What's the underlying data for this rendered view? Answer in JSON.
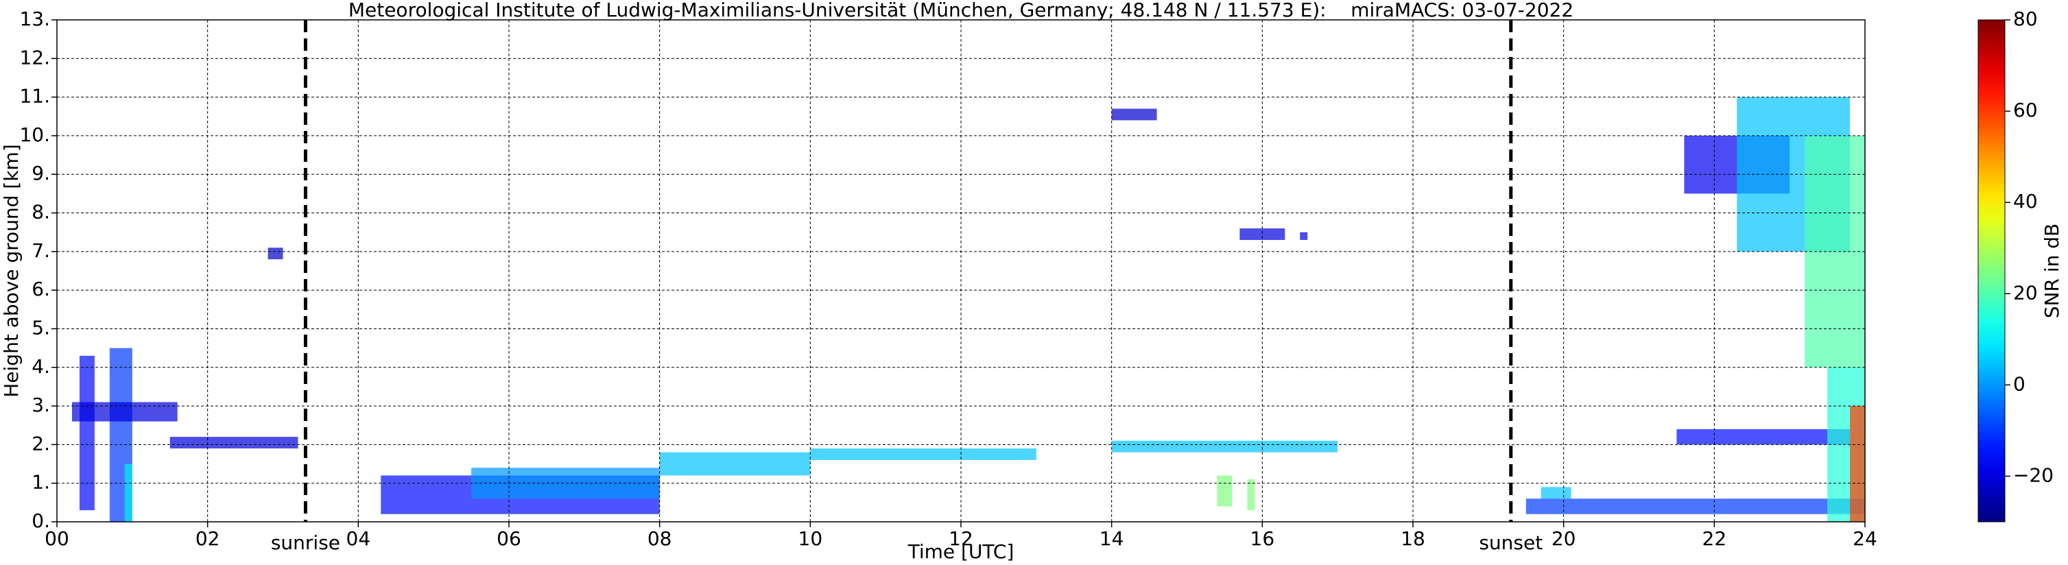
{
  "chart_data": {
    "type": "heatmap",
    "title": "Meteorological Institute of Ludwig-Maximilians-Universität (München, Germany; 48.148 N / 11.573 E):    miraMACS: 03-07-2022",
    "x_label": "Time [UTC]",
    "y_label": "Height above ground [km]",
    "xlim": [
      0,
      24
    ],
    "ylim": [
      0,
      13
    ],
    "xticks": [
      {
        "value": 0,
        "label": "00"
      },
      {
        "value": 2,
        "label": "02"
      },
      {
        "value": 4,
        "label": "04"
      },
      {
        "value": 6,
        "label": "06"
      },
      {
        "value": 8,
        "label": "08"
      },
      {
        "value": 10,
        "label": "10"
      },
      {
        "value": 12,
        "label": "12"
      },
      {
        "value": 14,
        "label": "14"
      },
      {
        "value": 16,
        "label": "16"
      },
      {
        "value": 18,
        "label": "18"
      },
      {
        "value": 20,
        "label": "20"
      },
      {
        "value": 22,
        "label": "22"
      },
      {
        "value": 24,
        "label": "24"
      }
    ],
    "yticks": [
      {
        "value": 0,
        "label": "0."
      },
      {
        "value": 1,
        "label": "1."
      },
      {
        "value": 2,
        "label": "2."
      },
      {
        "value": 3,
        "label": "3."
      },
      {
        "value": 4,
        "label": "4."
      },
      {
        "value": 5,
        "label": "5."
      },
      {
        "value": 6,
        "label": "6."
      },
      {
        "value": 7,
        "label": "7."
      },
      {
        "value": 8,
        "label": "8."
      },
      {
        "value": 9,
        "label": "9."
      },
      {
        "value": 10,
        "label": "10."
      },
      {
        "value": 11,
        "label": "11."
      },
      {
        "value": 12,
        "label": "12."
      },
      {
        "value": 13,
        "label": "13."
      }
    ],
    "grid": true,
    "colorbar": {
      "label": "SNR in dB",
      "colormap": "jet",
      "lim": [
        -30,
        80
      ],
      "ticks": [
        {
          "value": -20,
          "label": "−20"
        },
        0,
        20,
        40,
        60,
        80
      ]
    },
    "annotations": [
      {
        "text": "sunrise",
        "x": 3.3
      },
      {
        "text": "sunset",
        "x": 19.3
      }
    ],
    "cells": [
      {
        "x": [
          0.3,
          0.5
        ],
        "y": [
          0.3,
          4.3
        ],
        "value": -15
      },
      {
        "x": [
          0.7,
          1.0
        ],
        "y": [
          0,
          4.5
        ],
        "value": -10
      },
      {
        "x": [
          0.9,
          1.0
        ],
        "y": [
          0,
          1.5
        ],
        "value": 10
      },
      {
        "x": [
          0.2,
          1.6
        ],
        "y": [
          2.6,
          3.1
        ],
        "value": -20
      },
      {
        "x": [
          1.5,
          3.2
        ],
        "y": [
          1.9,
          2.2
        ],
        "value": -20
      },
      {
        "x": [
          2.8,
          3.0
        ],
        "y": [
          6.8,
          7.1
        ],
        "value": -22
      },
      {
        "x": [
          4.3,
          8.0
        ],
        "y": [
          0.2,
          1.2
        ],
        "value": -15
      },
      {
        "x": [
          5.5,
          8.0
        ],
        "y": [
          0.6,
          1.4
        ],
        "value": 0
      },
      {
        "x": [
          8.0,
          10.0
        ],
        "y": [
          1.2,
          1.8
        ],
        "value": 5
      },
      {
        "x": [
          10.0,
          13.0
        ],
        "y": [
          1.6,
          1.9
        ],
        "value": 5
      },
      {
        "x": [
          14.0,
          14.6
        ],
        "y": [
          10.4,
          10.7
        ],
        "value": -22
      },
      {
        "x": [
          15.4,
          15.6
        ],
        "y": [
          0.4,
          1.2
        ],
        "value": 25
      },
      {
        "x": [
          15.8,
          15.9
        ],
        "y": [
          0.3,
          1.1
        ],
        "value": 25
      },
      {
        "x": [
          15.7,
          16.3
        ],
        "y": [
          7.3,
          7.6
        ],
        "value": -20
      },
      {
        "x": [
          16.5,
          16.6
        ],
        "y": [
          7.3,
          7.5
        ],
        "value": -20
      },
      {
        "x": [
          14.0,
          17.0
        ],
        "y": [
          1.8,
          2.1
        ],
        "value": 5
      },
      {
        "x": [
          19.7,
          20.1
        ],
        "y": [
          0.6,
          0.9
        ],
        "value": 5
      },
      {
        "x": [
          19.5,
          24.0
        ],
        "y": [
          0.2,
          0.6
        ],
        "value": -10
      },
      {
        "x": [
          21.5,
          23.8
        ],
        "y": [
          2.0,
          2.4
        ],
        "value": -15
      },
      {
        "x": [
          21.6,
          23.0
        ],
        "y": [
          8.5,
          10.0
        ],
        "value": -18
      },
      {
        "x": [
          22.3,
          23.8
        ],
        "y": [
          7.0,
          11.0
        ],
        "value": 5
      },
      {
        "x": [
          23.2,
          24.0
        ],
        "y": [
          4.0,
          10.0
        ],
        "value": 20
      },
      {
        "x": [
          23.5,
          24.0
        ],
        "y": [
          0,
          4.0
        ],
        "value": 15
      },
      {
        "x": [
          23.8,
          24.0
        ],
        "y": [
          0,
          3.0
        ],
        "value": 60
      }
    ]
  }
}
